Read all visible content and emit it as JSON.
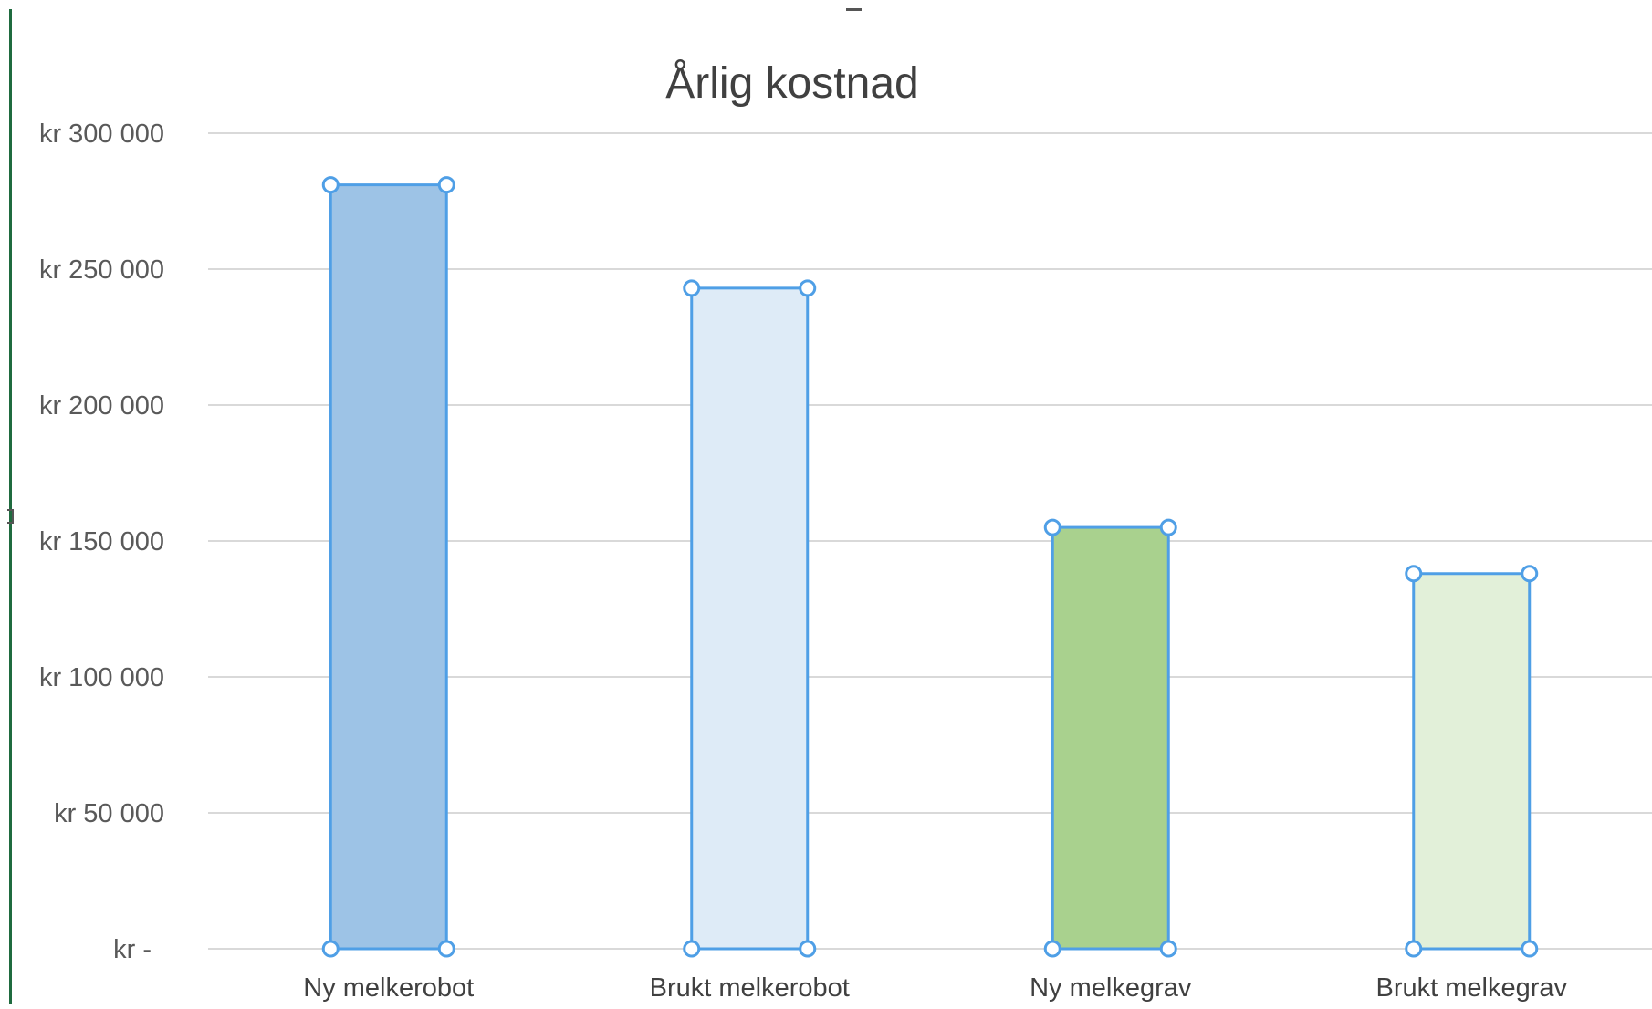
{
  "chart_data": {
    "type": "bar",
    "title": "Årlig kostnad",
    "xlabel": "",
    "ylabel": "",
    "categories": [
      "Ny melkerobot",
      "Brukt melkerobot",
      "Ny melkegrav",
      "Brukt melkegrav"
    ],
    "values": [
      281000,
      243000,
      155000,
      138000
    ],
    "ylim": [
      0,
      300000
    ],
    "yticks": [
      0,
      50000,
      100000,
      150000,
      200000,
      250000,
      300000
    ],
    "ytick_labels": [
      "kr -",
      "kr 50 000",
      "kr 100 000",
      "kr 150 000",
      "kr 200 000",
      "kr 250 000",
      "kr 300 000"
    ],
    "bar_fills": [
      "#9dc3e6",
      "#deebf7",
      "#a9d18e",
      "#e2f0d9"
    ],
    "selection_color": "#4f9fe6",
    "gridline_color": "#d9d9d9",
    "grid": true,
    "legend": "none"
  }
}
